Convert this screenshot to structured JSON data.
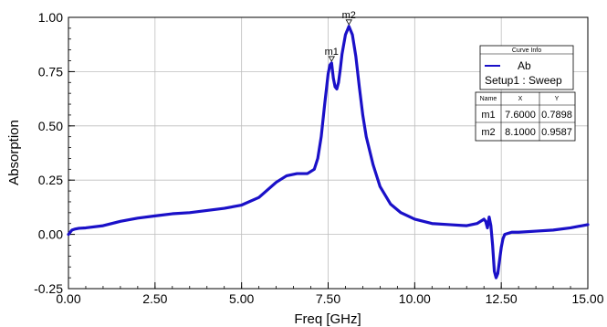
{
  "chart_data": {
    "type": "line",
    "title": "",
    "xlabel": "Freq [GHz]",
    "ylabel": "Absorption",
    "xlim": [
      0,
      15
    ],
    "ylim": [
      -0.25,
      1.0
    ],
    "x_ticks": [
      "0.00",
      "2.50",
      "5.00",
      "7.50",
      "10.00",
      "12.50",
      "15.00"
    ],
    "y_ticks": [
      "-0.25",
      "0.00",
      "0.25",
      "0.50",
      "0.75",
      "1.00"
    ],
    "grid": true,
    "series": [
      {
        "name": "Ab",
        "color": "#1a10c8",
        "x": [
          0,
          0.1,
          0.2,
          0.3,
          0.5,
          1.0,
          1.5,
          2.0,
          2.5,
          3.0,
          3.5,
          4.0,
          4.5,
          5.0,
          5.5,
          6.0,
          6.3,
          6.6,
          6.9,
          7.1,
          7.2,
          7.3,
          7.4,
          7.5,
          7.55,
          7.6,
          7.65,
          7.7,
          7.75,
          7.8,
          7.85,
          7.9,
          8.0,
          8.1,
          8.2,
          8.3,
          8.4,
          8.5,
          8.6,
          8.8,
          9.0,
          9.3,
          9.6,
          10.0,
          10.5,
          11.0,
          11.5,
          11.8,
          12.0,
          12.05,
          12.1,
          12.15,
          12.2,
          12.25,
          12.3,
          12.35,
          12.4,
          12.45,
          12.5,
          12.55,
          12.6,
          12.8,
          13.0,
          13.5,
          14.0,
          14.5,
          15.0
        ],
        "y": [
          0.0,
          0.02,
          0.025,
          0.028,
          0.03,
          0.04,
          0.06,
          0.075,
          0.085,
          0.095,
          0.1,
          0.11,
          0.12,
          0.135,
          0.17,
          0.24,
          0.27,
          0.28,
          0.28,
          0.3,
          0.35,
          0.45,
          0.6,
          0.74,
          0.78,
          0.7898,
          0.72,
          0.68,
          0.67,
          0.7,
          0.76,
          0.83,
          0.92,
          0.9587,
          0.92,
          0.82,
          0.68,
          0.55,
          0.45,
          0.32,
          0.22,
          0.14,
          0.1,
          0.07,
          0.05,
          0.045,
          0.04,
          0.05,
          0.07,
          0.06,
          0.03,
          0.08,
          0.04,
          -0.05,
          -0.17,
          -0.2,
          -0.18,
          -0.12,
          -0.06,
          -0.02,
          0.0,
          0.01,
          0.01,
          0.015,
          0.02,
          0.03,
          0.045
        ]
      }
    ],
    "markers": [
      {
        "name": "m1",
        "x": 7.6,
        "y": 0.7898
      },
      {
        "name": "m2",
        "x": 8.1,
        "y": 0.9587
      }
    ],
    "legend": {
      "title": "Curve Info",
      "entry_name": "Ab",
      "entry_sub": "Setup1 : Sweep",
      "placement": "top-right"
    },
    "marker_table": {
      "headers": [
        "Name",
        "X",
        "Y"
      ],
      "rows": [
        [
          "m1",
          "7.6000",
          "0.7898"
        ],
        [
          "m2",
          "8.1000",
          "0.9587"
        ]
      ]
    }
  }
}
